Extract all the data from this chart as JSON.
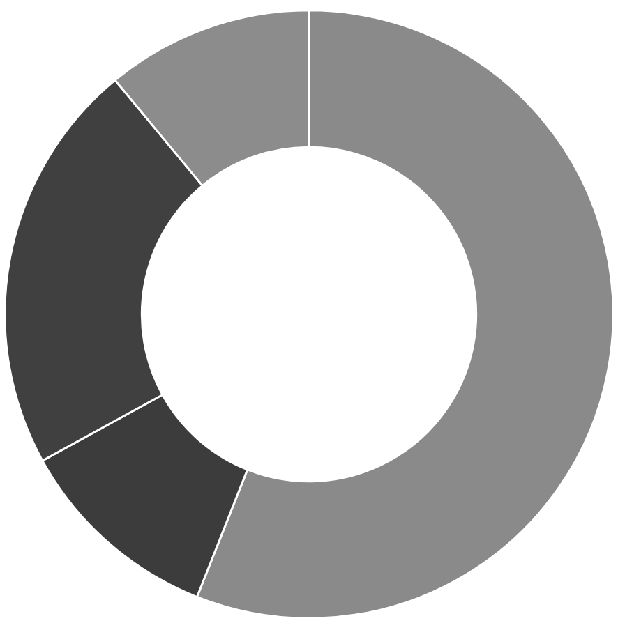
{
  "chart_data": {
    "type": "donut",
    "categories": [
      null,
      null,
      null,
      null
    ],
    "values": [
      56,
      11,
      22,
      11
    ],
    "colors": [
      "#8a8a8a",
      "#3c3c3c",
      "#404040",
      "#8c8c8c"
    ],
    "legend": false
  }
}
